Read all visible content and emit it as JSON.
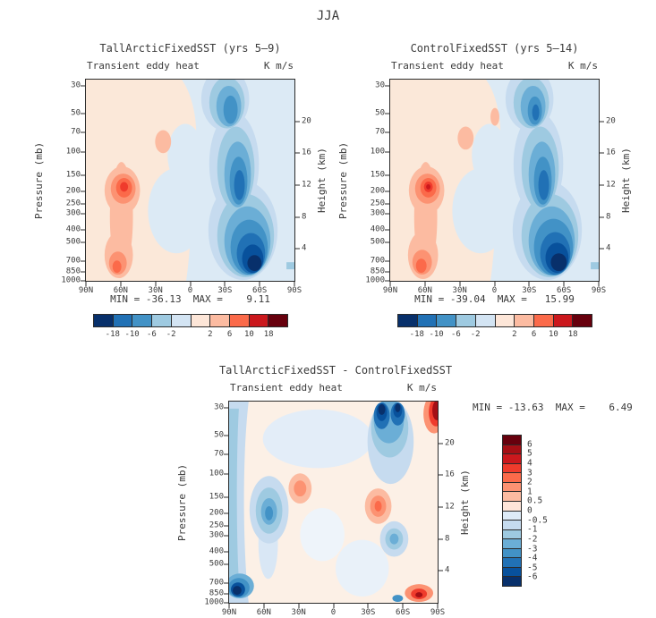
{
  "figure_title": "JJA",
  "axes": {
    "pressure_label": "Pressure (mb)",
    "height_label": "Height (km)",
    "pressure_ticks": [
      "30",
      "50",
      "70",
      "100",
      "150",
      "200",
      "250",
      "300",
      "400",
      "500",
      "700",
      "850",
      "1000"
    ],
    "height_ticks": [
      "20",
      "16",
      "12",
      "8",
      "4"
    ],
    "lat_ticks": [
      "90N",
      "60N",
      "30N",
      "0",
      "30S",
      "60S",
      "90S"
    ]
  },
  "panels": [
    {
      "title": "TallArcticFixedSST (yrs 5–9)",
      "subtitle_left": "Transient eddy heat",
      "subtitle_right": "K m/s",
      "stats": "MIN = -36.13  MAX =    9.11",
      "min": -36.13,
      "max": 9.11
    },
    {
      "title": "ControlFixedSST (yrs 5–14)",
      "subtitle_left": "Transient eddy heat",
      "subtitle_right": "K m/s",
      "stats": "MIN = -39.04  MAX =   15.99",
      "min": -39.04,
      "max": 15.99
    },
    {
      "title": "TallArcticFixedSST - ControlFixedSST",
      "subtitle_left": "Transient eddy heat",
      "subtitle_right": "K m/s",
      "stats": "MIN = -13.63  MAX =    6.49",
      "min": -13.63,
      "max": 6.49
    }
  ],
  "colorbar_horizontal": {
    "tick_labels": [
      "-18",
      "-10",
      "-6",
      "-2",
      "2",
      "6",
      "10",
      "18"
    ]
  },
  "colorbar_vertical": {
    "tick_labels": [
      "6",
      "5",
      "4",
      "3",
      "2",
      "1",
      "0.5",
      "0",
      "-0.5",
      "-1",
      "-2",
      "-3",
      "-4",
      "-5",
      "-6"
    ]
  },
  "palette": {
    "horizontal": [
      "#08306b",
      "#2171b5",
      "#4292c6",
      "#9ecae1",
      "#d3e4f3",
      "#fde6d8",
      "#fcbba1",
      "#fb6a4a",
      "#cb181d",
      "#67000d"
    ],
    "vertical": [
      "#67000d",
      "#a50f15",
      "#cb181d",
      "#ef3b2c",
      "#fb6a4a",
      "#fc9272",
      "#fcbba1",
      "#fee5d9",
      "#deebf7",
      "#c6dbef",
      "#9ecae1",
      "#6baed6",
      "#4292c6",
      "#2171b5",
      "#08519c",
      "#08306b"
    ]
  },
  "chart_data": [
    {
      "type": "heatmap",
      "title": "TallArcticFixedSST (yrs 5–9)",
      "variable": "Transient eddy heat",
      "units": "K m/s",
      "season": "JJA",
      "xlabel_ticks": [
        "90N",
        "60N",
        "30N",
        "0",
        "30S",
        "60S",
        "90S"
      ],
      "ylabel": "Pressure (mb)",
      "ylabel_secondary": "Height (km)",
      "y_ticks_pressure_mb": [
        30,
        50,
        70,
        100,
        150,
        200,
        250,
        300,
        400,
        500,
        700,
        850,
        1000
      ],
      "y_ticks_height_km": [
        20,
        16,
        12,
        8,
        4
      ],
      "min": -36.13,
      "max": 9.11,
      "contour_levels": [
        -18,
        -10,
        -6,
        -2,
        0,
        2,
        6,
        10,
        18
      ],
      "features": [
        "positive (orange/red) maximum ~6-10 K m/s near 60N at 150-250 mb",
        "secondary positive maximum near 60N at 850-1000 mb",
        "broad negative (blue) band from 30S to 70S through the depth of the atmosphere",
        "negative minimum (< -18 K m/s) near 60S below 700 mb"
      ]
    },
    {
      "type": "heatmap",
      "title": "ControlFixedSST (yrs 5–14)",
      "variable": "Transient eddy heat",
      "units": "K m/s",
      "season": "JJA",
      "xlabel_ticks": [
        "90N",
        "60N",
        "30N",
        "0",
        "30S",
        "60S",
        "90S"
      ],
      "ylabel": "Pressure (mb)",
      "ylabel_secondary": "Height (km)",
      "y_ticks_pressure_mb": [
        30,
        50,
        70,
        100,
        150,
        200,
        250,
        300,
        400,
        500,
        700,
        850,
        1000
      ],
      "y_ticks_height_km": [
        20,
        16,
        12,
        8,
        4
      ],
      "min": -39.04,
      "max": 15.99,
      "contour_levels": [
        -18,
        -10,
        -6,
        -2,
        0,
        2,
        6,
        10,
        18
      ],
      "features": [
        "positive (orange/red) maximum ~10-18 K m/s near 60N at 150-250 mb",
        "secondary positive maximum near 60N at 850-1000 mb",
        "broad negative (blue) band from 30S to 70S through the depth of the atmosphere",
        "negative minimum (< -18 K m/s) near 60S below 700 mb"
      ]
    },
    {
      "type": "heatmap",
      "title": "TallArcticFixedSST - ControlFixedSST",
      "variable": "Transient eddy heat (difference)",
      "units": "K m/s",
      "season": "JJA",
      "xlabel_ticks": [
        "90N",
        "60N",
        "30N",
        "0",
        "30S",
        "60S",
        "90S"
      ],
      "ylabel": "Pressure (mb)",
      "ylabel_secondary": "Height (km)",
      "y_ticks_pressure_mb": [
        30,
        50,
        70,
        100,
        150,
        200,
        250,
        300,
        400,
        500,
        700,
        850,
        1000
      ],
      "y_ticks_height_km": [
        20,
        16,
        12,
        8,
        4
      ],
      "min": -13.63,
      "max": 6.49,
      "contour_levels": [
        -6,
        -5,
        -4,
        -3,
        -2,
        -1,
        -0.5,
        0,
        0.5,
        1,
        2,
        3,
        4,
        5,
        6
      ],
      "features": [
        "negative (blue) band along 80-90N at all levels with dark minimum near 80N below 850 mb",
        "negative anomaly near 60N at 150-250 mb",
        "positive (orange) anomaly near 30N around 150 mb",
        "strong negative minima near 50-70S above 70 mb",
        "positive maximum at the 90S top corner and near 70-85S below 850 mb",
        "positive anomaly near 40S around 200 mb"
      ]
    }
  ]
}
